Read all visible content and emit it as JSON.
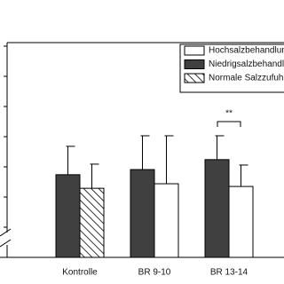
{
  "chart_data": {
    "type": "bar",
    "categories": [
      "Kontrolle",
      "BR 9-10",
      "BR 13-14"
    ],
    "series": [
      {
        "name": "Hochsalzbehandlun",
        "color": "#ffffff",
        "values": [
          null,
          2.44,
          2.35
        ],
        "errors": [
          null,
          1.59,
          0.71
        ]
      },
      {
        "name": "Niedrigsalzbehandlu",
        "color": "#404040",
        "values": [
          2.74,
          2.91,
          3.24
        ],
        "errors": [
          0.94,
          1.12,
          0.79
        ]
      },
      {
        "name": "Normale Salzzufuhr",
        "color": "#000000",
        "hatch": true,
        "values": [
          2.29,
          null,
          null
        ],
        "errors": [
          0.8,
          null,
          null
        ]
      }
    ],
    "annotation": "**",
    "ylim": [
      0,
      7
    ],
    "yticks": [
      1,
      2,
      3,
      4,
      5,
      6,
      7
    ],
    "legend": "top-right"
  }
}
